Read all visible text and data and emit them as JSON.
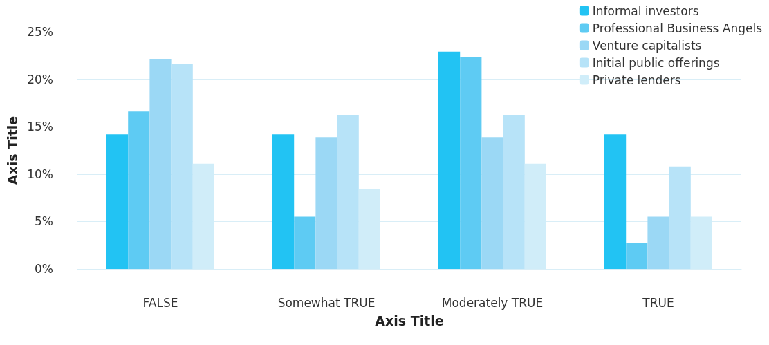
{
  "chart_data": {
    "type": "bar",
    "xlabel": "Axis Title",
    "ylabel": "Axis Title",
    "categories": [
      "FALSE",
      "Somewhat TRUE",
      "Moderately TRUE",
      "TRUE"
    ],
    "series": [
      {
        "name": "Informal investors",
        "color": "#22c3f3",
        "values": [
          14.2,
          14.2,
          22.9,
          14.2
        ]
      },
      {
        "name": "Professional Business Angels",
        "color": "#5ecbf3",
        "values": [
          16.6,
          5.5,
          22.3,
          2.7
        ]
      },
      {
        "name": "Venture capitalists",
        "color": "#9bd8f5",
        "values": [
          22.1,
          13.9,
          13.9,
          5.5
        ]
      },
      {
        "name": "Initial public offerings",
        "color": "#b7e3f8",
        "values": [
          21.6,
          16.2,
          16.2,
          10.8
        ]
      },
      {
        "name": "Private lenders",
        "color": "#d0edf9",
        "values": [
          11.1,
          8.4,
          11.1,
          5.5
        ]
      }
    ],
    "ylim": [
      0,
      25
    ],
    "yticks": [
      {
        "value": 0,
        "label": "0%"
      },
      {
        "value": 5,
        "label": "5%"
      },
      {
        "value": 10,
        "label": "10%"
      },
      {
        "value": 15,
        "label": "15%"
      },
      {
        "value": 20,
        "label": "20%"
      },
      {
        "value": 25,
        "label": "25%"
      }
    ],
    "grid": "y",
    "legend": "top right"
  }
}
